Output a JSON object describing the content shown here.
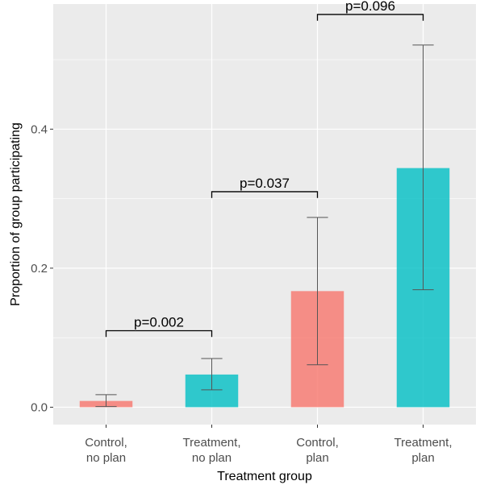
{
  "chart_data": {
    "type": "bar",
    "categories": [
      [
        "Control,",
        "no plan"
      ],
      [
        "Treatment,",
        "no plan"
      ],
      [
        "Control,",
        "plan"
      ],
      [
        "Treatment,",
        "plan"
      ]
    ],
    "values": [
      0.009,
      0.047,
      0.167,
      0.344
    ],
    "error_low": [
      0.001,
      0.025,
      0.061,
      0.169
    ],
    "error_high": [
      0.018,
      0.07,
      0.273,
      0.521
    ],
    "bar_colors": [
      "#F8766D",
      "#00BFC4",
      "#F8766D",
      "#00BFC4"
    ],
    "xlabel": "Treatment group",
    "ylabel": "Proportion of group participating",
    "ylim": [
      -0.025,
      0.58
    ],
    "yticks": [
      0.0,
      0.2,
      0.4
    ],
    "ytick_labels": [
      "0.0",
      "0.2",
      "0.4"
    ],
    "grid": true,
    "comparisons": [
      {
        "from": 0,
        "to": 1,
        "label": "p=0.002",
        "y": 0.11,
        "drop": 0.009
      },
      {
        "from": 1,
        "to": 2,
        "label": "p=0.037",
        "y": 0.31,
        "drop": 0.009
      },
      {
        "from": 2,
        "to": 3,
        "label": "p=0.096",
        "y": 0.565,
        "drop": 0.009
      }
    ],
    "colors": {
      "panel": "#EBEBEB",
      "grid": "#FFFFFF",
      "error_bar": "#555555",
      "bracket": "#000000"
    }
  }
}
